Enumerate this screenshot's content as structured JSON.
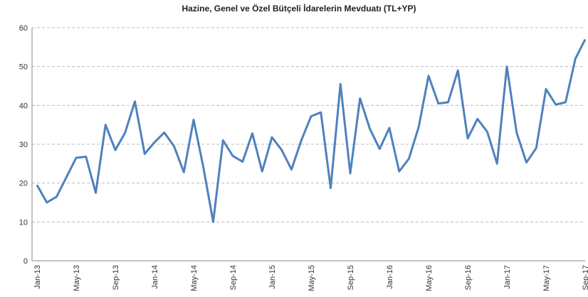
{
  "chart_data": {
    "type": "line",
    "title": "Hazine, Genel ve Özel Bütçeli İdarelerin Mevduatı (TL+YP)",
    "categories": [
      "Jan-13",
      null,
      null,
      null,
      "May-13",
      null,
      null,
      null,
      "Sep-13",
      null,
      null,
      null,
      "Jan-14",
      null,
      null,
      null,
      "May-14",
      null,
      null,
      null,
      "Sep-14",
      null,
      null,
      null,
      "Jan-15",
      null,
      null,
      null,
      "May-15",
      null,
      null,
      null,
      "Sep-15",
      null,
      null,
      null,
      "Jan-16",
      null,
      null,
      null,
      "May-16",
      null,
      null,
      null,
      "Sep-16",
      null,
      null,
      null,
      "Jan-17",
      null,
      null,
      null,
      "May-17",
      null,
      null,
      null,
      "Sep-17"
    ],
    "values": [
      19.5,
      15,
      16.5,
      21.5,
      26.5,
      26.8,
      17.5,
      35,
      28.5,
      33,
      41,
      27.5,
      30.5,
      33,
      29.5,
      22.8,
      36.3,
      24,
      10,
      31,
      27,
      25.5,
      32.8,
      23,
      31.8,
      28.5,
      23.5,
      31,
      37.2,
      38.2,
      18.7,
      45.5,
      22.5,
      41.8,
      34,
      28.8,
      34.2,
      23,
      26.3,
      34.5,
      47.6,
      40.5,
      40.8,
      49,
      31.5,
      36.5,
      33.2,
      25,
      50,
      33,
      25.3,
      29,
      44.2,
      40.2,
      40.8,
      52,
      57
    ],
    "color": "#4f81bd",
    "ylim": [
      0,
      60
    ],
    "yticks": [
      0,
      10,
      20,
      30,
      40,
      50,
      60
    ],
    "grid": true
  }
}
